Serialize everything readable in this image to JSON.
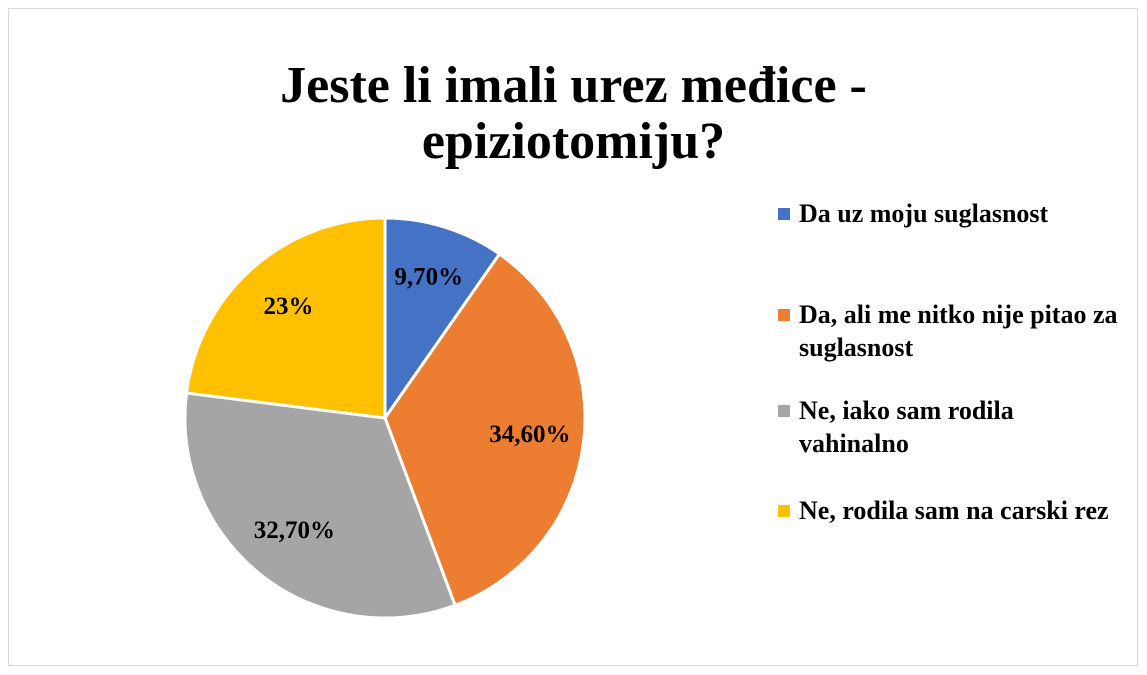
{
  "chart_data": {
    "type": "pie",
    "title": "Jeste li imali urez međice - epiziotomiju?",
    "categories": [
      "Da uz moju suglasnost",
      "Da, ali me nitko nije pitao za suglasnost",
      "Ne, iako sam rodila vahinalno",
      "Ne, rodila sam na carski rez"
    ],
    "values": [
      9.7,
      34.6,
      32.7,
      23
    ],
    "value_labels": [
      "9,70%",
      "34,60%",
      "32,70%",
      "23%"
    ],
    "colors": [
      "#4472c4",
      "#ed7d31",
      "#a5a5a5",
      "#ffc000"
    ],
    "legend": "right"
  }
}
